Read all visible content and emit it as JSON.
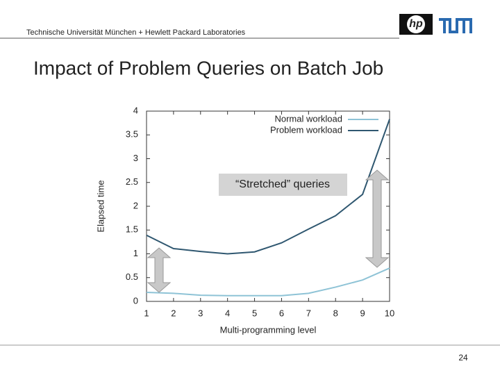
{
  "header": {
    "text": "Technische Universität München + Hewlett Packard Laboratories",
    "logo": "hp"
  },
  "slide_title": "Impact of Problem Queries on Batch Job",
  "page_number": "24",
  "chart_data": {
    "type": "line",
    "x": [
      1,
      2,
      3,
      4,
      5,
      6,
      7,
      8,
      9,
      10
    ],
    "xlim": [
      1,
      10
    ],
    "xticks": [
      1,
      2,
      3,
      4,
      5,
      6,
      7,
      8,
      9,
      10
    ],
    "ylim": [
      0,
      4
    ],
    "yticks": [
      0,
      0.5,
      1,
      1.5,
      2,
      2.5,
      3,
      3.5,
      4
    ],
    "x_label": "Multi-programming level",
    "y_label": "Elapsed time",
    "legend": "upper right",
    "grid": false,
    "annotation": "“Stretched” queries",
    "series": [
      {
        "name": "Normal workload",
        "color": "#8ec3d6",
        "values": [
          0.19,
          0.17,
          0.13,
          0.12,
          0.12,
          0.12,
          0.17,
          0.3,
          0.45,
          0.7
        ]
      },
      {
        "name": "Problem workload",
        "color": "#2f5770",
        "values": [
          1.39,
          1.11,
          1.05,
          1.0,
          1.04,
          1.23,
          1.52,
          1.8,
          2.25,
          3.83
        ]
      }
    ]
  }
}
